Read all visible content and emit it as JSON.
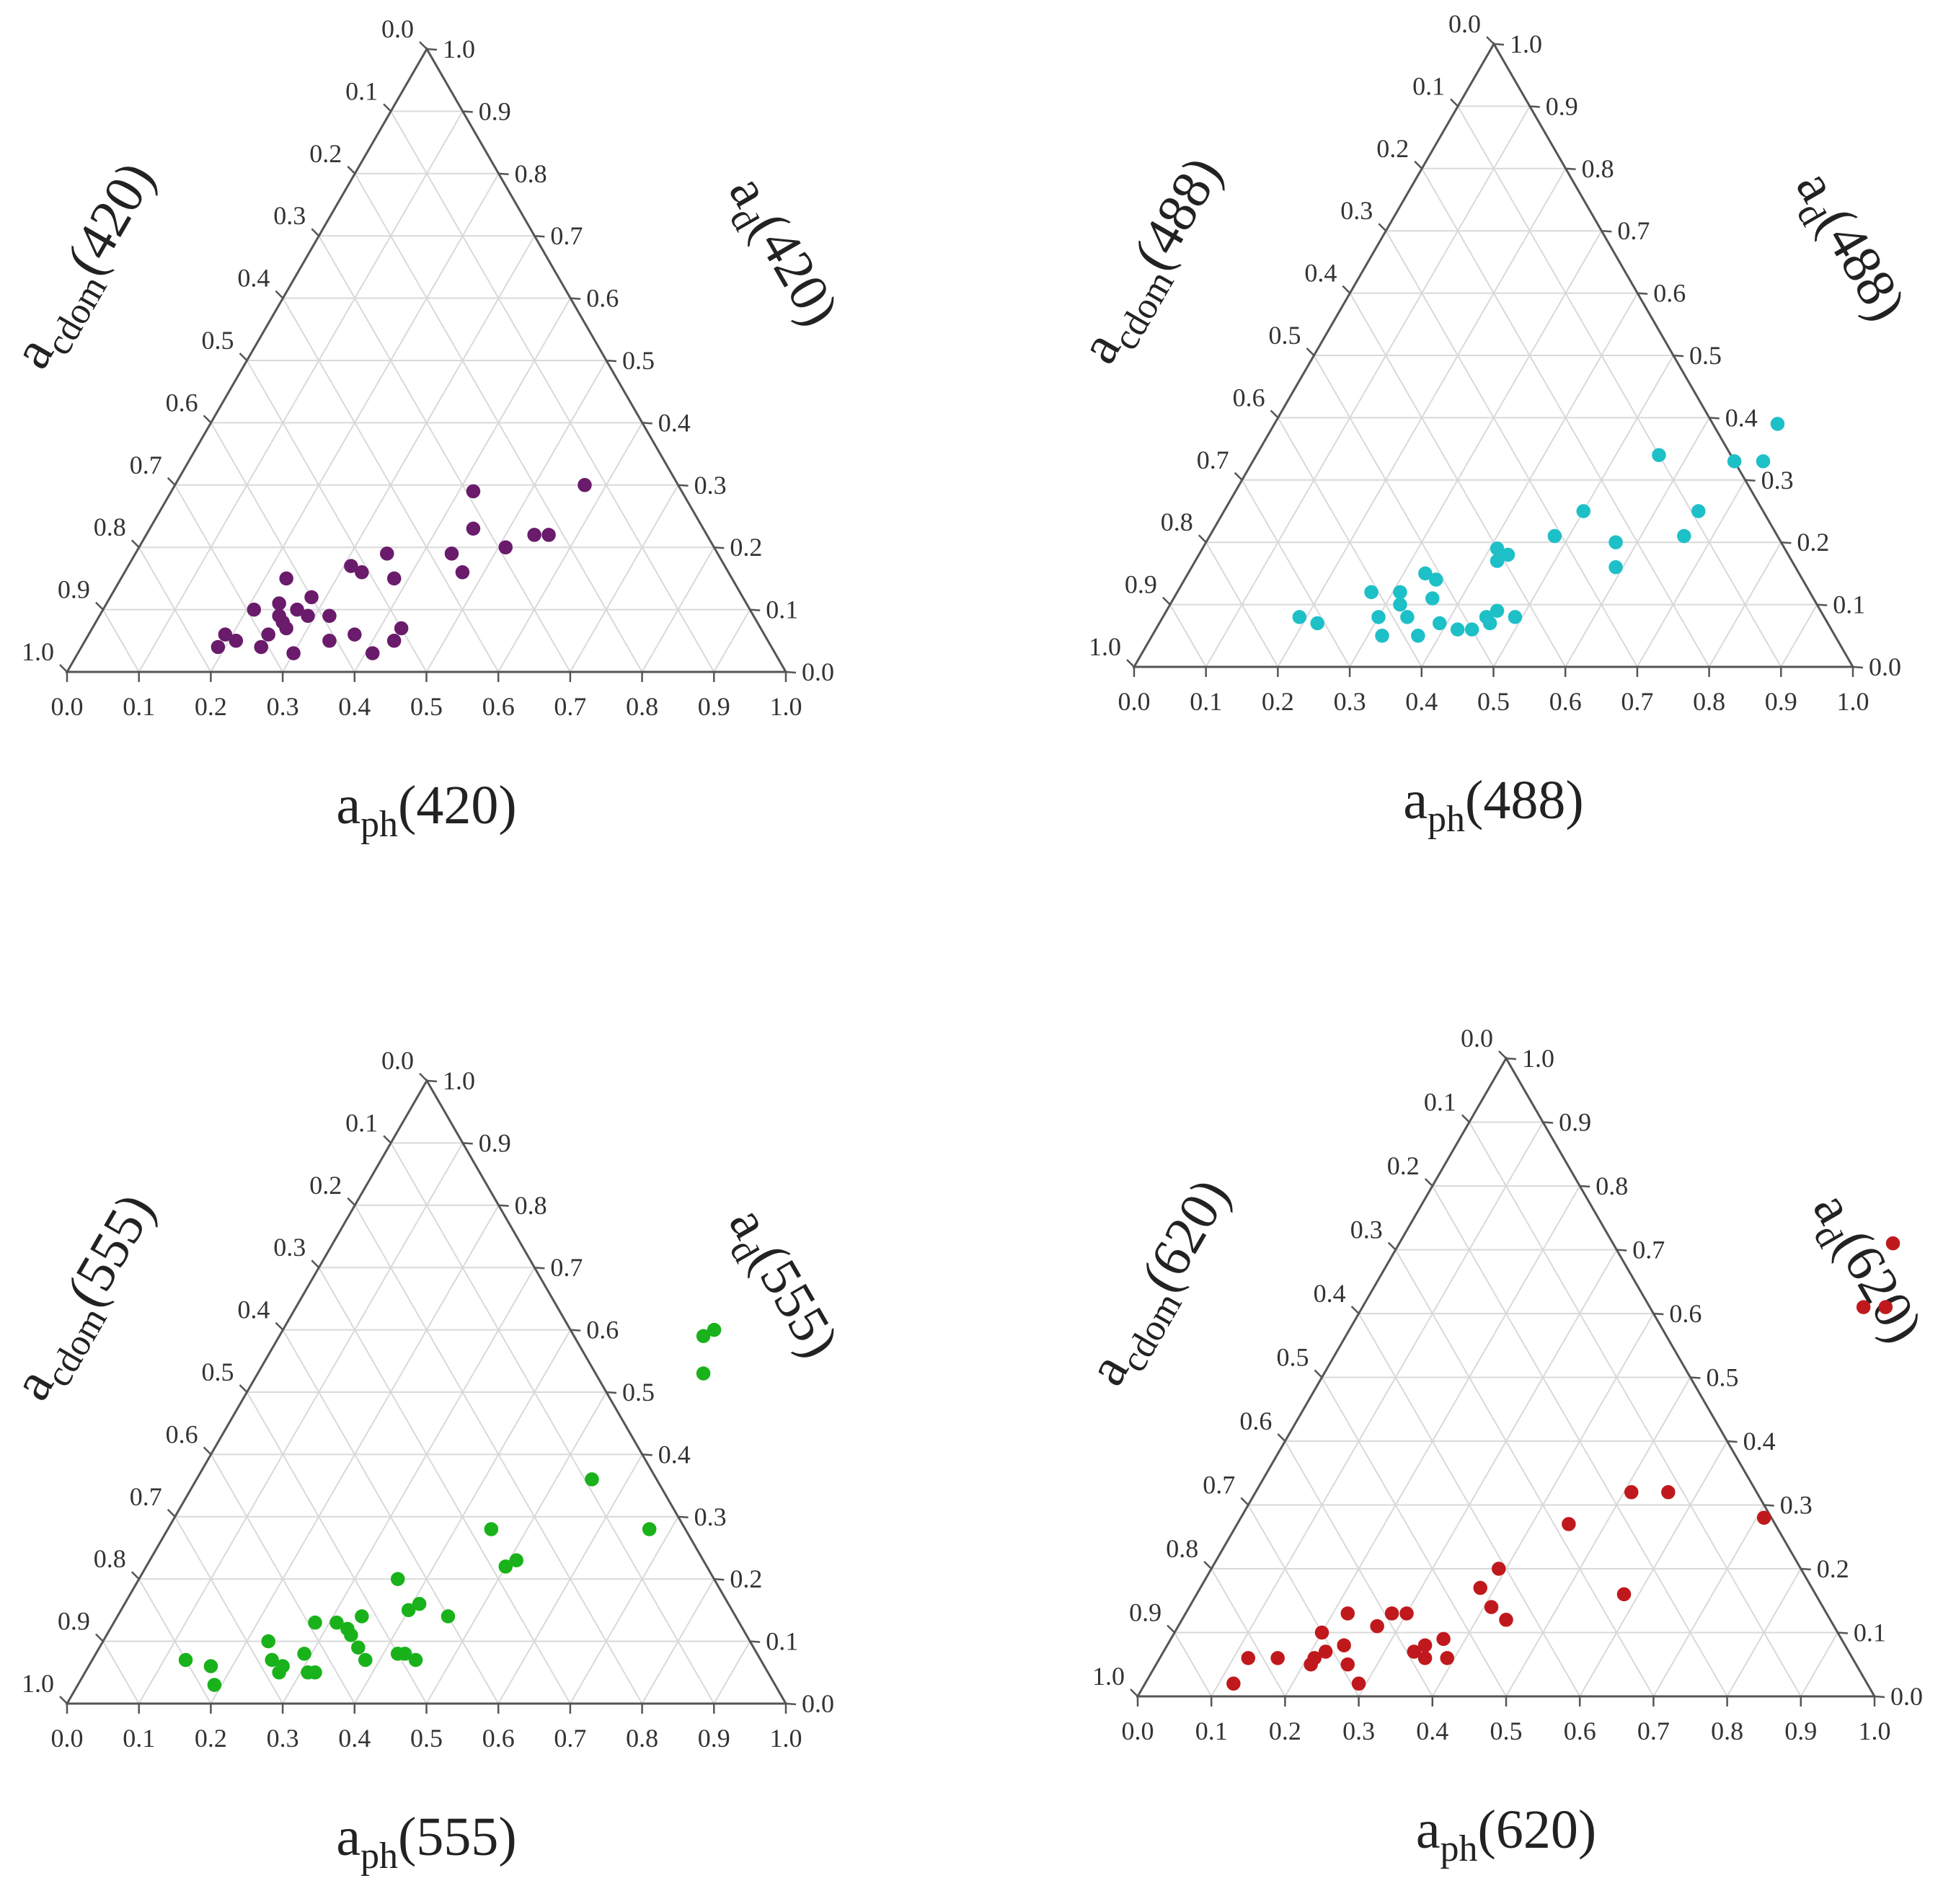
{
  "chart_data": [
    {
      "type": "scatter",
      "subtype": "ternary",
      "wavelength": "420",
      "color": "#6a1b6b",
      "axes": {
        "bottom": {
          "base": "a",
          "sub": "ph",
          "suffix": "(420)",
          "variable": "aph"
        },
        "left": {
          "base": "a",
          "sub": "cdom",
          "suffix": "(420)",
          "variable": "acdom"
        },
        "right": {
          "base": "a",
          "sub": "d",
          "suffix": "(420)",
          "variable": "ad"
        }
      },
      "ticks": [
        "0.0",
        "0.1",
        "0.2",
        "0.3",
        "0.4",
        "0.5",
        "0.6",
        "0.7",
        "0.8",
        "0.9",
        "1.0"
      ],
      "grid": true,
      "points": [
        {
          "aph": 0.19,
          "ad": 0.06
        },
        {
          "aph": 0.19,
          "ad": 0.04
        },
        {
          "aph": 0.21,
          "ad": 0.1
        },
        {
          "aph": 0.21,
          "ad": 0.05
        },
        {
          "aph": 0.23,
          "ad": 0.15
        },
        {
          "aph": 0.24,
          "ad": 0.11
        },
        {
          "aph": 0.25,
          "ad": 0.06
        },
        {
          "aph": 0.25,
          "ad": 0.04
        },
        {
          "aph": 0.26,
          "ad": 0.08
        },
        {
          "aph": 0.27,
          "ad": 0.1
        },
        {
          "aph": 0.27,
          "ad": 0.07
        },
        {
          "aph": 0.28,
          "ad": 0.12
        },
        {
          "aph": 0.29,
          "ad": 0.09
        },
        {
          "aph": 0.3,
          "ad": 0.03
        },
        {
          "aph": 0.31,
          "ad": 0.17
        },
        {
          "aph": 0.32,
          "ad": 0.09
        },
        {
          "aph": 0.33,
          "ad": 0.16
        },
        {
          "aph": 0.34,
          "ad": 0.05
        },
        {
          "aph": 0.35,
          "ad": 0.19
        },
        {
          "aph": 0.37,
          "ad": 0.06
        },
        {
          "aph": 0.38,
          "ad": 0.15
        },
        {
          "aph": 0.41,
          "ad": 0.03
        },
        {
          "aph": 0.43,
          "ad": 0.07
        },
        {
          "aph": 0.43,
          "ad": 0.05
        },
        {
          "aph": 0.44,
          "ad": 0.19
        },
        {
          "aph": 0.45,
          "ad": 0.23
        },
        {
          "aph": 0.47,
          "ad": 0.16
        },
        {
          "aph": 0.51,
          "ad": 0.2
        },
        {
          "aph": 0.54,
          "ad": 0.22
        },
        {
          "aph": 0.57,
          "ad": 0.3
        },
        {
          "aph": 0.56,
          "ad": 0.22
        },
        {
          "aph": 0.42,
          "ad": 0.29
        },
        {
          "aph": 0.25,
          "ad": 0.09
        }
      ]
    },
    {
      "type": "scatter",
      "subtype": "ternary",
      "wavelength": "488",
      "color": "#1ec0c8",
      "axes": {
        "bottom": {
          "base": "a",
          "sub": "ph",
          "suffix": "(488)",
          "variable": "aph"
        },
        "left": {
          "base": "a",
          "sub": "cdom",
          "suffix": "(488)",
          "variable": "acdom"
        },
        "right": {
          "base": "a",
          "sub": "d",
          "suffix": "(488)",
          "variable": "ad"
        }
      },
      "ticks": [
        "0.0",
        "0.1",
        "0.2",
        "0.3",
        "0.4",
        "0.5",
        "0.6",
        "0.7",
        "0.8",
        "0.9",
        "1.0"
      ],
      "grid": true,
      "points": [
        {
          "aph": 0.19,
          "ad": 0.08
        },
        {
          "aph": 0.22,
          "ad": 0.07
        },
        {
          "aph": 0.27,
          "ad": 0.12
        },
        {
          "aph": 0.3,
          "ad": 0.08
        },
        {
          "aph": 0.31,
          "ad": 0.12
        },
        {
          "aph": 0.32,
          "ad": 0.1
        },
        {
          "aph": 0.32,
          "ad": 0.05
        },
        {
          "aph": 0.33,
          "ad": 0.15
        },
        {
          "aph": 0.34,
          "ad": 0.08
        },
        {
          "aph": 0.35,
          "ad": 0.14
        },
        {
          "aph": 0.36,
          "ad": 0.11
        },
        {
          "aph": 0.37,
          "ad": 0.05
        },
        {
          "aph": 0.39,
          "ad": 0.07
        },
        {
          "aph": 0.41,
          "ad": 0.19
        },
        {
          "aph": 0.42,
          "ad": 0.17
        },
        {
          "aph": 0.42,
          "ad": 0.06
        },
        {
          "aph": 0.43,
          "ad": 0.18
        },
        {
          "aph": 0.44,
          "ad": 0.06
        },
        {
          "aph": 0.45,
          "ad": 0.08
        },
        {
          "aph": 0.46,
          "ad": 0.07
        },
        {
          "aph": 0.46,
          "ad": 0.09
        },
        {
          "aph": 0.48,
          "ad": 0.21
        },
        {
          "aph": 0.5,
          "ad": 0.25
        },
        {
          "aph": 0.49,
          "ad": 0.08
        },
        {
          "aph": 0.56,
          "ad": 0.34
        },
        {
          "aph": 0.57,
          "ad": 0.2
        },
        {
          "aph": 0.59,
          "ad": 0.16
        },
        {
          "aph": 0.67,
          "ad": 0.33
        },
        {
          "aph": 0.66,
          "ad": 0.25
        },
        {
          "aph": 0.66,
          "ad": 0.21
        },
        {
          "aph": 0.7,
          "ad": 0.39
        },
        {
          "aph": 0.71,
          "ad": 0.33
        }
      ]
    },
    {
      "type": "scatter",
      "subtype": "ternary",
      "wavelength": "555",
      "color": "#19b21b",
      "axes": {
        "bottom": {
          "base": "a",
          "sub": "ph",
          "suffix": "(555)",
          "variable": "aph"
        },
        "left": {
          "base": "a",
          "sub": "cdom",
          "suffix": "(555)",
          "variable": "acdom"
        },
        "right": {
          "base": "a",
          "sub": "d",
          "suffix": "(555)",
          "variable": "ad"
        }
      },
      "ticks": [
        "0.0",
        "0.1",
        "0.2",
        "0.3",
        "0.4",
        "0.5",
        "0.6",
        "0.7",
        "0.8",
        "0.9",
        "1.0"
      ],
      "grid": true,
      "points": [
        {
          "aph": 0.13,
          "ad": 0.07
        },
        {
          "aph": 0.17,
          "ad": 0.06
        },
        {
          "aph": 0.19,
          "ad": 0.03
        },
        {
          "aph": 0.23,
          "ad": 0.1
        },
        {
          "aph": 0.25,
          "ad": 0.07
        },
        {
          "aph": 0.27,
          "ad": 0.06
        },
        {
          "aph": 0.27,
          "ad": 0.05
        },
        {
          "aph": 0.28,
          "ad": 0.13
        },
        {
          "aph": 0.29,
          "ad": 0.08
        },
        {
          "aph": 0.31,
          "ad": 0.13
        },
        {
          "aph": 0.31,
          "ad": 0.05
        },
        {
          "aph": 0.32,
          "ad": 0.05
        },
        {
          "aph": 0.33,
          "ad": 0.12
        },
        {
          "aph": 0.34,
          "ad": 0.11
        },
        {
          "aph": 0.34,
          "ad": 0.14
        },
        {
          "aph": 0.36,
          "ad": 0.09
        },
        {
          "aph": 0.36,
          "ad": 0.2
        },
        {
          "aph": 0.38,
          "ad": 0.07
        },
        {
          "aph": 0.4,
          "ad": 0.15
        },
        {
          "aph": 0.41,
          "ad": 0.16
        },
        {
          "aph": 0.42,
          "ad": 0.08
        },
        {
          "aph": 0.43,
          "ad": 0.08
        },
        {
          "aph": 0.45,
          "ad": 0.28
        },
        {
          "aph": 0.45,
          "ad": 0.07
        },
        {
          "aph": 0.46,
          "ad": 0.14
        },
        {
          "aph": 0.5,
          "ad": 0.22
        },
        {
          "aph": 0.51,
          "ad": 0.23
        },
        {
          "aph": 0.55,
          "ad": 0.36
        },
        {
          "aph": 0.6,
          "ad": 0.6
        },
        {
          "aph": 0.59,
          "ad": 0.59
        },
        {
          "aph": 0.62,
          "ad": 0.53
        },
        {
          "aph": 0.67,
          "ad": 0.28
        }
      ]
    },
    {
      "type": "scatter",
      "subtype": "ternary",
      "wavelength": "620",
      "color": "#c0191d",
      "axes": {
        "bottom": {
          "base": "a",
          "sub": "ph",
          "suffix": "(620)",
          "variable": "aph"
        },
        "left": {
          "base": "a",
          "sub": "cdom",
          "suffix": "(620)",
          "variable": "acdom"
        },
        "right": {
          "base": "a",
          "sub": "d",
          "suffix": "(620)",
          "variable": "ad"
        }
      },
      "ticks": [
        "0.0",
        "0.1",
        "0.2",
        "0.3",
        "0.4",
        "0.5",
        "0.6",
        "0.7",
        "0.8",
        "0.9",
        "1.0"
      ],
      "grid": true,
      "points": [
        {
          "aph": 0.12,
          "ad": 0.06
        },
        {
          "aph": 0.12,
          "ad": 0.02
        },
        {
          "aph": 0.16,
          "ad": 0.06
        },
        {
          "aph": 0.2,
          "ad": 0.1
        },
        {
          "aph": 0.21,
          "ad": 0.05
        },
        {
          "aph": 0.21,
          "ad": 0.06
        },
        {
          "aph": 0.22,
          "ad": 0.13
        },
        {
          "aph": 0.22,
          "ad": 0.07
        },
        {
          "aph": 0.24,
          "ad": 0.08
        },
        {
          "aph": 0.26,
          "ad": 0.05
        },
        {
          "aph": 0.27,
          "ad": 0.11
        },
        {
          "aph": 0.28,
          "ad": 0.13
        },
        {
          "aph": 0.3,
          "ad": 0.13
        },
        {
          "aph": 0.29,
          "ad": 0.02
        },
        {
          "aph": 0.34,
          "ad": 0.07
        },
        {
          "aph": 0.35,
          "ad": 0.08
        },
        {
          "aph": 0.36,
          "ad": 0.06
        },
        {
          "aph": 0.37,
          "ad": 0.09
        },
        {
          "aph": 0.38,
          "ad": 0.17
        },
        {
          "aph": 0.39,
          "ad": 0.2
        },
        {
          "aph": 0.39,
          "ad": 0.06
        },
        {
          "aph": 0.41,
          "ad": 0.14
        },
        {
          "aph": 0.44,
          "ad": 0.12
        },
        {
          "aph": 0.45,
          "ad": 0.27
        },
        {
          "aph": 0.51,
          "ad": 0.32
        },
        {
          "aph": 0.56,
          "ad": 0.32
        },
        {
          "aph": 0.58,
          "ad": 0.16
        },
        {
          "aph": 0.71,
          "ad": 0.28
        },
        {
          "aph": 0.67,
          "ad": 0.71
        },
        {
          "aph": 0.68,
          "ad": 0.61
        },
        {
          "aph": 0.71,
          "ad": 0.61
        }
      ]
    }
  ]
}
